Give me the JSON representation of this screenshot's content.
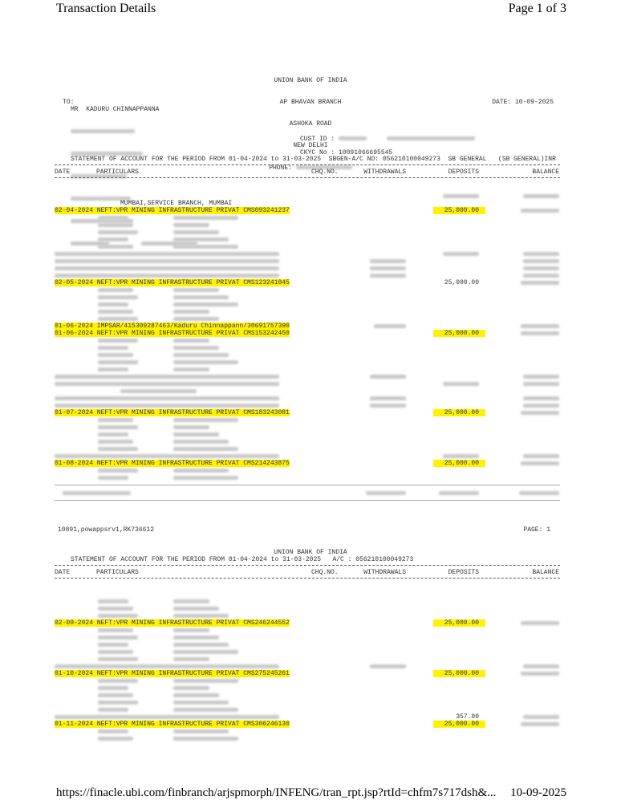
{
  "browser_header": {
    "title": "Transaction Details",
    "page": "Page 1 of 3"
  },
  "browser_footer": {
    "url": "https://finacle.ubi.com/finbranch/arjspmorph/INFENG/tran_rpt.jsp?rtId=chfm7s717dsh&...",
    "date": "10-09-2025"
  },
  "bank": {
    "name": "UNION BANK OF INDIA",
    "branch": "AP BHAVAN BRANCH",
    "road": "ASHOKA ROAD",
    "city": "NEW DELHI",
    "phone_label": "PHONE:"
  },
  "customer": {
    "to": "TO:",
    "name": "MR  KADURU CHINNAPPANNA",
    "date": "DATE: 10-09-2025",
    "cust_id_label": "CUST ID :",
    "ckyc": "CKYC No : 10091066695545"
  },
  "statement_line": "STATEMENT OF ACCOUNT FOR THE PERIOD FROM 01-04-2024 to 31-03-2025  SBGEN-A/C NO: 056210100049273  SB GENERAL   (SB GENERAL)INR",
  "columns": {
    "date": "DATE",
    "particulars": "PARTICULARS",
    "chq": "CHQ.NO.",
    "withdrawals": "WITHDRAWALS",
    "deposits": "DEPOSITS",
    "balance": "BALANCE"
  },
  "page1_rows": [
    {
      "type": "redacted",
      "cols": [
        "dep",
        "bal"
      ]
    },
    {
      "type": "text",
      "text": "MUMBAI,SERVICE BRANCH, MUMBAI"
    },
    {
      "type": "txn",
      "text": "02-04-2024 NEFT:VPR MINING INFRASTRUCTURE PRIVAT CMS093241237",
      "deposit": "25,000.00",
      "dep_hl": true
    },
    {
      "type": "detail"
    },
    {
      "type": "detail"
    },
    {
      "type": "detail"
    },
    {
      "type": "detail"
    },
    {
      "type": "detail"
    },
    {
      "type": "redacted",
      "cols": [
        "part",
        "dep",
        "bal"
      ]
    },
    {
      "type": "redacted",
      "cols": [
        "part",
        "wd",
        "bal"
      ]
    },
    {
      "type": "redacted",
      "cols": [
        "part",
        "wd",
        "bal"
      ]
    },
    {
      "type": "redacted",
      "cols": [
        "part",
        "wd",
        "bal"
      ]
    },
    {
      "type": "txn",
      "text": "02-05-2024 NEFT:VPR MINING INFRASTRUCTURE PRIVAT CMS123241845",
      "deposit": "25,000.00",
      "dep_hl": false
    },
    {
      "type": "detail"
    },
    {
      "type": "detail"
    },
    {
      "type": "detail"
    },
    {
      "type": "detail"
    },
    {
      "type": "detail"
    },
    {
      "type": "txn",
      "text": "01-06-2024 IMPSAR/415309287463/Kaduru Chinnappann/30691757390",
      "wd_red": true
    },
    {
      "type": "txn",
      "text": "01-06-2024 NEFT:VPR MINING INFRASTRUCTURE PRIVAT CMS153242450",
      "deposit": "25,000.00",
      "dep_hl": true
    },
    {
      "type": "detail"
    },
    {
      "type": "detail"
    },
    {
      "type": "detail"
    },
    {
      "type": "detail"
    },
    {
      "type": "detail"
    },
    {
      "type": "redacted",
      "cols": [
        "part",
        "wd",
        "bal"
      ]
    },
    {
      "type": "redacted",
      "cols": [
        "part",
        "dep",
        "bal"
      ]
    },
    {
      "type": "redacted",
      "cols": [
        "ind"
      ]
    },
    {
      "type": "redacted",
      "cols": [
        "part",
        "wd",
        "bal"
      ]
    },
    {
      "type": "redacted",
      "cols": [
        "part",
        "wd",
        "bal"
      ]
    },
    {
      "type": "txn",
      "text": "01-07-2024 NEFT:VPR MINING INFRASTRUCTURE PRIVAT CMS183243081",
      "deposit": "25,000.00",
      "dep_hl": true
    },
    {
      "type": "detail"
    },
    {
      "type": "detail"
    },
    {
      "type": "detail"
    },
    {
      "type": "detail"
    },
    {
      "type": "detail"
    },
    {
      "type": "redacted",
      "cols": [
        "part",
        "dep",
        "bal"
      ]
    },
    {
      "type": "txn",
      "text": "01-08-2024 NEFT:VPR MINING INFRASTRUCTURE PRIVAT CMS214243875",
      "deposit": "25,000.00",
      "dep_hl": true
    },
    {
      "type": "detail"
    },
    {
      "type": "detail"
    }
  ],
  "page1_footer": {
    "left": "10891,powappsrv1,RK736612",
    "right": "PAGE: 1"
  },
  "page2_header": {
    "bank": "UNION BANK OF INDIA",
    "statement_line": "STATEMENT OF ACCOUNT FOR THE PERIOD FROM 01-04-2024 to 31-03-2025   A/C : 056210100049273"
  },
  "page2_rows": [
    {
      "type": "detail"
    },
    {
      "type": "detail"
    },
    {
      "type": "detail"
    },
    {
      "type": "txn",
      "text": "02-09-2024 NEFT:VPR MINING INFRASTRUCTURE PRIVAT CMS246244552",
      "deposit": "25,000.00",
      "dep_hl": true
    },
    {
      "type": "detail"
    },
    {
      "type": "detail"
    },
    {
      "type": "detail"
    },
    {
      "type": "detail"
    },
    {
      "type": "detail"
    },
    {
      "type": "redacted",
      "cols": [
        "part",
        "wd",
        "bal"
      ]
    },
    {
      "type": "txn",
      "text": "01-10-2024 NEFT:VPR MINING INFRASTRUCTURE PRIVAT CMS275245261",
      "deposit": "25,000.00",
      "dep_hl": true
    },
    {
      "type": "detail"
    },
    {
      "type": "detail"
    },
    {
      "type": "detail"
    },
    {
      "type": "detail"
    },
    {
      "type": "detail"
    },
    {
      "type": "redacted",
      "cols": [
        "part",
        "bal"
      ],
      "deposit": "357.00"
    },
    {
      "type": "txn",
      "text": "01-11-2024 NEFT:VPR MINING INFRASTRUCTURE PRIVAT CMS306246130",
      "deposit": "25,000.00",
      "dep_hl": true
    },
    {
      "type": "detail"
    },
    {
      "type": "detail"
    }
  ],
  "colors": {
    "highlight": "#fff200",
    "redacted": "#c9c9c9"
  }
}
